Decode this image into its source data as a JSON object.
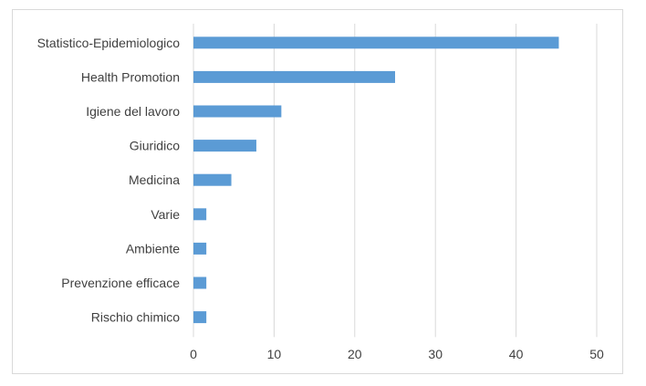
{
  "chart_data": {
    "type": "bar",
    "orientation": "horizontal",
    "categories": [
      "Statistico-Epidemiologico",
      "Health Promotion",
      "Igiene del lavoro",
      "Giuridico",
      "Medicina",
      "Varie",
      "Ambiente",
      "Prevenzione efficace",
      "Rischio chimico"
    ],
    "values": [
      45.3,
      25,
      10.9,
      7.8,
      4.7,
      1.6,
      1.6,
      1.6,
      1.6
    ],
    "xlim": [
      0,
      50
    ],
    "xticks": [
      0,
      10,
      20,
      30,
      40,
      50
    ],
    "xlabel": "",
    "ylabel": "",
    "title": "",
    "grid": true,
    "legend": "none",
    "colors": {
      "bar": "#5b9bd5",
      "grid": "#d9d9d9",
      "text": "#404040",
      "border": "#d9d9d9"
    }
  }
}
